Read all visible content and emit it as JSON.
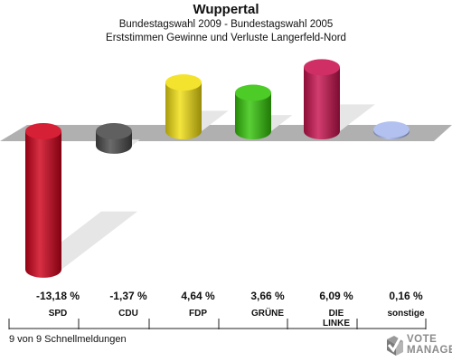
{
  "header": {
    "title": "Wuppertal",
    "subtitle_1": "Bundestagswahl 2009 - Bundestagswahl 2005",
    "subtitle_2": "Erststimmen Gewinne und Verluste Langerfeld-Nord"
  },
  "chart_data": {
    "type": "bar",
    "title": "Wuppertal",
    "subtitle": "Bundestagswahl 2009 - Bundestagswahl 2005 / Erststimmen Gewinne und Verluste Langerfeld-Nord",
    "categories": [
      "SPD",
      "CDU",
      "FDP",
      "GRÜNE",
      "DIE LINKE",
      "sonstige"
    ],
    "category_lines": [
      [
        "SPD"
      ],
      [
        "CDU"
      ],
      [
        "FDP"
      ],
      [
        "GRÜNE"
      ],
      [
        "DIE",
        "LINKE"
      ],
      [
        "sonstige"
      ]
    ],
    "values": [
      -13.18,
      -1.37,
      4.64,
      3.66,
      6.09,
      0.16
    ],
    "value_labels": [
      "-13,18 %",
      "-1,37 %",
      "4,64 %",
      "3,66 %",
      "6,09 %",
      "0,16 %"
    ],
    "colors": [
      "#d0021b",
      "#4a4a4a",
      "#f2df12",
      "#35c40a",
      "#c8134f",
      "#a8b8ee"
    ],
    "xlabel": "",
    "ylabel": "",
    "grid": false,
    "legend": "none"
  },
  "footer": {
    "status": "9 von 9 Schnellmeldungen",
    "logo_line_1": "VOTE",
    "logo_line_2": "MANAGER"
  }
}
